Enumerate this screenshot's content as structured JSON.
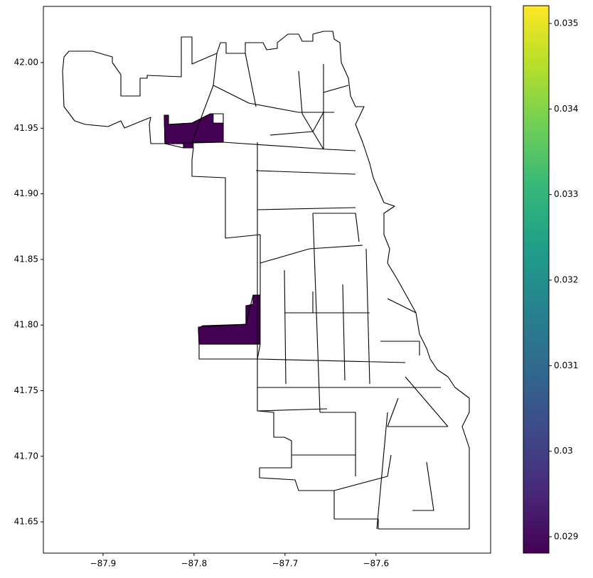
{
  "chart_data": {
    "type": "choropleth",
    "xlim": [
      -87.9656,
      -87.474
    ],
    "ylim": [
      41.6262,
      42.0428
    ],
    "xticks": [
      {
        "value": -87.9,
        "label": "−87.9"
      },
      {
        "value": -87.8,
        "label": "−87.8"
      },
      {
        "value": -87.7,
        "label": "−87.7"
      },
      {
        "value": -87.6,
        "label": "−87.6"
      }
    ],
    "yticks": [
      41.65,
      {
        "value": 41.7,
        "label": "41.70"
      },
      41.75,
      {
        "value": 41.8,
        "label": "41.80"
      },
      41.85,
      {
        "value": 41.9,
        "label": "41.90"
      },
      41.95,
      {
        "value": 42.0,
        "label": "42.00"
      }
    ],
    "clim": [
      0.028809,
      0.035208
    ],
    "cticks": [
      0.029,
      0.03,
      0.031,
      0.032,
      0.033,
      0.034,
      0.035
    ],
    "colormap": [
      "#440154",
      "#482878",
      "#3e4989",
      "#31688e",
      "#26828e",
      "#1f9e89",
      "#35b779",
      "#6ece58",
      "#b5de2b",
      "#fde725"
    ],
    "regions": [
      {
        "value": 0.02881,
        "color": "#440154",
        "polygon": [
          [
            -87.8328,
            41.9599
          ],
          [
            -87.8281,
            41.9599
          ],
          [
            -87.8281,
            41.9529
          ],
          [
            -87.8023,
            41.9539
          ],
          [
            -87.782,
            41.961
          ],
          [
            -87.7789,
            41.961
          ],
          [
            -87.7789,
            41.9539
          ],
          [
            -87.768,
            41.9539
          ],
          [
            -87.768,
            41.9393
          ],
          [
            -87.8008,
            41.9393
          ],
          [
            -87.8008,
            41.935
          ],
          [
            -87.8117,
            41.935
          ],
          [
            -87.8117,
            41.9382
          ],
          [
            -87.832,
            41.9382
          ]
        ]
      },
      {
        "value": 0.02881,
        "color": "#440154",
        "polygon": [
          [
            -87.7352,
            41.8228
          ],
          [
            -87.7273,
            41.8228
          ],
          [
            -87.7273,
            41.7854
          ],
          [
            -87.7945,
            41.7854
          ],
          [
            -87.7953,
            41.7974
          ],
          [
            -87.7906,
            41.7995
          ],
          [
            -87.743,
            41.8006
          ],
          [
            -87.743,
            41.8147
          ],
          [
            -87.7352,
            41.8158
          ]
        ]
      }
    ]
  }
}
